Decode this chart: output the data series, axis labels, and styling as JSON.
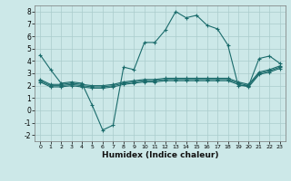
{
  "title": "",
  "xlabel": "Humidex (Indice chaleur)",
  "background_color": "#cce8e8",
  "grid_color": "#aacccc",
  "line_color": "#1a6b6b",
  "xlim": [
    -0.5,
    23.5
  ],
  "ylim": [
    -2.5,
    8.5
  ],
  "xticks": [
    0,
    1,
    2,
    3,
    4,
    5,
    6,
    7,
    8,
    9,
    10,
    11,
    12,
    13,
    14,
    15,
    16,
    17,
    18,
    19,
    20,
    21,
    22,
    23
  ],
  "yticks": [
    -2,
    -1,
    0,
    1,
    2,
    3,
    4,
    5,
    6,
    7,
    8
  ],
  "series": [
    {
      "x": [
        0,
        1,
        2,
        3,
        4,
        5,
        6,
        7,
        8,
        9,
        10,
        11,
        12,
        13,
        14,
        15,
        16,
        17,
        18,
        19,
        20,
        21,
        22,
        23
      ],
      "y": [
        4.5,
        3.3,
        2.2,
        2.3,
        2.2,
        0.4,
        -1.6,
        -1.2,
        3.5,
        3.3,
        5.5,
        5.5,
        6.5,
        8.0,
        7.5,
        7.7,
        6.9,
        6.6,
        5.3,
        2.0,
        2.0,
        4.2,
        4.4,
        3.8
      ]
    },
    {
      "x": [
        0,
        1,
        2,
        3,
        4,
        5,
        6,
        7,
        8,
        9,
        10,
        11,
        12,
        13,
        14,
        15,
        16,
        17,
        18,
        19,
        20,
        21,
        22,
        23
      ],
      "y": [
        2.5,
        2.1,
        2.1,
        2.2,
        2.1,
        2.0,
        2.0,
        2.1,
        2.3,
        2.4,
        2.5,
        2.5,
        2.6,
        2.6,
        2.6,
        2.6,
        2.6,
        2.6,
        2.6,
        2.3,
        2.1,
        3.1,
        3.3,
        3.6
      ]
    },
    {
      "x": [
        0,
        1,
        2,
        3,
        4,
        5,
        6,
        7,
        8,
        9,
        10,
        11,
        12,
        13,
        14,
        15,
        16,
        17,
        18,
        19,
        20,
        21,
        22,
        23
      ],
      "y": [
        2.4,
        2.0,
        2.0,
        2.1,
        2.0,
        1.9,
        1.9,
        2.0,
        2.2,
        2.3,
        2.4,
        2.4,
        2.5,
        2.5,
        2.5,
        2.5,
        2.5,
        2.5,
        2.5,
        2.2,
        2.0,
        3.0,
        3.2,
        3.5
      ]
    },
    {
      "x": [
        0,
        1,
        2,
        3,
        4,
        5,
        6,
        7,
        8,
        9,
        10,
        11,
        12,
        13,
        14,
        15,
        16,
        17,
        18,
        19,
        20,
        21,
        22,
        23
      ],
      "y": [
        2.3,
        1.9,
        1.9,
        2.0,
        1.9,
        1.8,
        1.8,
        1.9,
        2.1,
        2.2,
        2.3,
        2.3,
        2.4,
        2.4,
        2.4,
        2.4,
        2.4,
        2.4,
        2.4,
        2.1,
        1.9,
        2.9,
        3.1,
        3.4
      ]
    }
  ]
}
